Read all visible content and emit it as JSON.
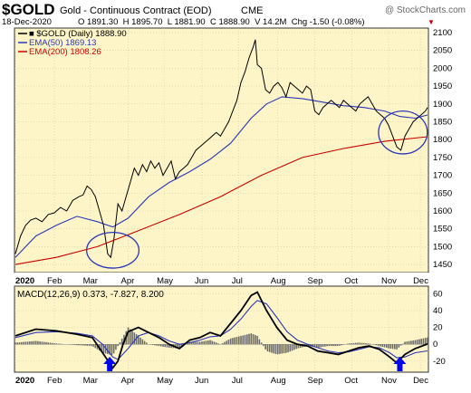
{
  "header": {
    "symbol": "$GOLD",
    "description": "Gold - Continuous Contract (EOD)",
    "exchange": "CME",
    "watermark": "@ StockCharts.com",
    "date": "18-Dec-2020",
    "ohlc": "O 1891.30  H 1895.70  L 1881.90  C 1888.90  V 14.2M  Chg -1.50 (-0.08%)",
    "chg_arrow": "▼"
  },
  "chart_data": [
    {
      "type": "line",
      "panel": "price",
      "legend": [
        {
          "label": "■ $GOLD (Daily) 1888.90",
          "color": "#000000"
        },
        {
          "label": "EMA(50) 1869.13",
          "color": "#2a36b8"
        },
        {
          "label": "EMA(200) 1808.26",
          "color": "#cc0000"
        }
      ],
      "x_months": [
        "2020",
        "Feb",
        "Mar",
        "Apr",
        "May",
        "Jun",
        "Jul",
        "Aug",
        "Sep",
        "Oct",
        "Nov",
        "Dec"
      ],
      "y_ticks": [
        1450,
        1500,
        1550,
        1600,
        1650,
        1700,
        1750,
        1800,
        1850,
        1900,
        1950,
        2000,
        2050,
        2100
      ],
      "ylim": [
        1430,
        2110
      ],
      "series": [
        {
          "role": "price",
          "color": "#000000",
          "values": [
            [
              0,
              1480
            ],
            [
              5,
              1530
            ],
            [
              10,
              1560
            ],
            [
              15,
              1575
            ],
            [
              20,
              1580
            ],
            [
              26,
              1570
            ],
            [
              32,
              1590
            ],
            [
              38,
              1595
            ],
            [
              44,
              1610
            ],
            [
              50,
              1600
            ],
            [
              56,
              1630
            ],
            [
              62,
              1640
            ],
            [
              66,
              1645
            ],
            [
              70,
              1670
            ],
            [
              74,
              1660
            ],
            [
              78,
              1640
            ],
            [
              82,
              1600
            ],
            [
              86,
              1560
            ],
            [
              90,
              1480
            ],
            [
              93,
              1470
            ],
            [
              96,
              1520
            ],
            [
              100,
              1620
            ],
            [
              104,
              1600
            ],
            [
              108,
              1640
            ],
            [
              112,
              1680
            ],
            [
              116,
              1720
            ],
            [
              120,
              1700
            ],
            [
              124,
              1730
            ],
            [
              128,
              1710
            ],
            [
              132,
              1740
            ],
            [
              136,
              1720
            ],
            [
              140,
              1735
            ],
            [
              144,
              1700
            ],
            [
              148,
              1720
            ],
            [
              152,
              1740
            ],
            [
              156,
              1690
            ],
            [
              160,
              1710
            ],
            [
              164,
              1720
            ],
            [
              168,
              1730
            ],
            [
              172,
              1750
            ],
            [
              176,
              1770
            ],
            [
              180,
              1780
            ],
            [
              184,
              1790
            ],
            [
              188,
              1800
            ],
            [
              192,
              1810
            ],
            [
              196,
              1820
            ],
            [
              200,
              1810
            ],
            [
              204,
              1830
            ],
            [
              208,
              1850
            ],
            [
              212,
              1880
            ],
            [
              216,
              1910
            ],
            [
              220,
              1960
            ],
            [
              224,
              1990
            ],
            [
              228,
              2030
            ],
            [
              232,
              2060
            ],
            [
              234,
              2080
            ],
            [
              236,
              2010
            ],
            [
              240,
              2000
            ],
            [
              244,
              1940
            ],
            [
              248,
              1930
            ],
            [
              252,
              1950
            ],
            [
              256,
              1960
            ],
            [
              260,
              1945
            ],
            [
              264,
              1920
            ],
            [
              268,
              1960
            ],
            [
              272,
              1950
            ],
            [
              276,
              1940
            ],
            [
              280,
              1930
            ],
            [
              284,
              1950
            ],
            [
              288,
              1940
            ],
            [
              292,
              1880
            ],
            [
              296,
              1870
            ],
            [
              300,
              1890
            ],
            [
              304,
              1900
            ],
            [
              308,
              1910
            ],
            [
              312,
              1900
            ],
            [
              316,
              1890
            ],
            [
              320,
              1910
            ],
            [
              324,
              1900
            ],
            [
              328,
              1890
            ],
            [
              332,
              1880
            ],
            [
              336,
              1900
            ],
            [
              340,
              1910
            ],
            [
              344,
              1920
            ],
            [
              348,
              1900
            ],
            [
              352,
              1880
            ],
            [
              356,
              1870
            ],
            [
              360,
              1860
            ],
            [
              364,
              1840
            ],
            [
              368,
              1810
            ],
            [
              372,
              1780
            ],
            [
              376,
              1770
            ],
            [
              380,
              1810
            ],
            [
              384,
              1830
            ],
            [
              388,
              1850
            ],
            [
              392,
              1860
            ],
            [
              396,
              1870
            ],
            [
              400,
              1880
            ],
            [
              402,
              1890
            ]
          ]
        },
        {
          "role": "ema50",
          "color": "#2a36b8",
          "values": [
            [
              0,
              1470
            ],
            [
              20,
              1530
            ],
            [
              40,
              1560
            ],
            [
              60,
              1585
            ],
            [
              80,
              1570
            ],
            [
              95,
              1555
            ],
            [
              110,
              1580
            ],
            [
              130,
              1640
            ],
            [
              150,
              1680
            ],
            [
              170,
              1710
            ],
            [
              190,
              1745
            ],
            [
              210,
              1790
            ],
            [
              230,
              1860
            ],
            [
              245,
              1900
            ],
            [
              260,
              1920
            ],
            [
              280,
              1915
            ],
            [
              300,
              1905
            ],
            [
              320,
              1895
            ],
            [
              340,
              1890
            ],
            [
              360,
              1880
            ],
            [
              375,
              1865
            ],
            [
              390,
              1860
            ],
            [
              402,
              1869
            ]
          ]
        },
        {
          "role": "ema200",
          "color": "#cc0000",
          "values": [
            [
              0,
              1450
            ],
            [
              40,
              1470
            ],
            [
              80,
              1500
            ],
            [
              120,
              1545
            ],
            [
              160,
              1590
            ],
            [
              200,
              1640
            ],
            [
              240,
              1700
            ],
            [
              280,
              1750
            ],
            [
              320,
              1775
            ],
            [
              360,
              1795
            ],
            [
              402,
              1808
            ]
          ]
        }
      ],
      "annotations": [
        {
          "type": "ellipse",
          "color": "#2a36b8",
          "x": 95,
          "y": 1490,
          "rx": 15,
          "ry": 50
        },
        {
          "type": "ellipse",
          "color": "#2a36b8",
          "x": 378,
          "y": 1820,
          "rx": 14,
          "ry": 60
        }
      ]
    },
    {
      "type": "line",
      "panel": "macd",
      "legend_label": "MACD(12,26,9) 0.373, -7.827, 8.200",
      "x_months": [
        "2020",
        "Feb",
        "Mar",
        "Apr",
        "May",
        "Jun",
        "Jul",
        "Aug",
        "Sep",
        "Oct",
        "Nov",
        "Dec"
      ],
      "y_ticks": [
        60,
        40,
        20,
        0,
        -20
      ],
      "ylim": [
        -32,
        68
      ],
      "series": [
        {
          "role": "macd",
          "color": "#000000",
          "values": [
            [
              0,
              10
            ],
            [
              20,
              18
            ],
            [
              40,
              16
            ],
            [
              60,
              12
            ],
            [
              75,
              8
            ],
            [
              85,
              -10
            ],
            [
              95,
              -28
            ],
            [
              100,
              -20
            ],
            [
              105,
              0
            ],
            [
              110,
              15
            ],
            [
              120,
              20
            ],
            [
              130,
              14
            ],
            [
              140,
              8
            ],
            [
              150,
              0
            ],
            [
              160,
              -5
            ],
            [
              170,
              5
            ],
            [
              180,
              8
            ],
            [
              190,
              14
            ],
            [
              200,
              10
            ],
            [
              210,
              25
            ],
            [
              220,
              40
            ],
            [
              230,
              58
            ],
            [
              236,
              62
            ],
            [
              245,
              40
            ],
            [
              255,
              20
            ],
            [
              265,
              5
            ],
            [
              275,
              0
            ],
            [
              285,
              -2
            ],
            [
              295,
              -8
            ],
            [
              305,
              -10
            ],
            [
              315,
              -12
            ],
            [
              325,
              -8
            ],
            [
              335,
              -4
            ],
            [
              345,
              -2
            ],
            [
              355,
              -6
            ],
            [
              365,
              -15
            ],
            [
              372,
              -22
            ],
            [
              380,
              -12
            ],
            [
              390,
              -5
            ],
            [
              402,
              0.373
            ]
          ]
        },
        {
          "role": "signal",
          "color": "#2a36b8",
          "values": [
            [
              0,
              8
            ],
            [
              20,
              14
            ],
            [
              40,
              15
            ],
            [
              60,
              13
            ],
            [
              75,
              10
            ],
            [
              85,
              0
            ],
            [
              95,
              -15
            ],
            [
              100,
              -18
            ],
            [
              110,
              -5
            ],
            [
              120,
              10
            ],
            [
              130,
              14
            ],
            [
              140,
              10
            ],
            [
              150,
              4
            ],
            [
              160,
              0
            ],
            [
              170,
              2
            ],
            [
              180,
              5
            ],
            [
              190,
              9
            ],
            [
              200,
              10
            ],
            [
              210,
              18
            ],
            [
              220,
              30
            ],
            [
              230,
              45
            ],
            [
              236,
              52
            ],
            [
              245,
              48
            ],
            [
              255,
              32
            ],
            [
              265,
              15
            ],
            [
              275,
              5
            ],
            [
              285,
              0
            ],
            [
              295,
              -4
            ],
            [
              305,
              -8
            ],
            [
              315,
              -10
            ],
            [
              325,
              -9
            ],
            [
              335,
              -6
            ],
            [
              345,
              -3
            ],
            [
              355,
              -4
            ],
            [
              365,
              -10
            ],
            [
              372,
              -16
            ],
            [
              380,
              -15
            ],
            [
              390,
              -10
            ],
            [
              402,
              -7.827
            ]
          ]
        },
        {
          "role": "histogram",
          "color": "#555555",
          "values": [
            [
              0,
              2
            ],
            [
              20,
              4
            ],
            [
              40,
              1
            ],
            [
              60,
              -1
            ],
            [
              75,
              -2
            ],
            [
              85,
              -10
            ],
            [
              95,
              -13
            ],
            [
              100,
              -2
            ],
            [
              110,
              20
            ],
            [
              120,
              10
            ],
            [
              130,
              0
            ],
            [
              140,
              -2
            ],
            [
              150,
              -4
            ],
            [
              160,
              -5
            ],
            [
              170,
              3
            ],
            [
              180,
              3
            ],
            [
              190,
              5
            ],
            [
              200,
              0
            ],
            [
              210,
              7
            ],
            [
              220,
              10
            ],
            [
              230,
              13
            ],
            [
              236,
              10
            ],
            [
              245,
              -8
            ],
            [
              255,
              -12
            ],
            [
              265,
              -10
            ],
            [
              275,
              -5
            ],
            [
              285,
              -2
            ],
            [
              295,
              -4
            ],
            [
              305,
              -2
            ],
            [
              315,
              -2
            ],
            [
              325,
              1
            ],
            [
              335,
              2
            ],
            [
              345,
              1
            ],
            [
              355,
              -2
            ],
            [
              365,
              -5
            ],
            [
              372,
              -6
            ],
            [
              380,
              3
            ],
            [
              390,
              5
            ],
            [
              402,
              8.2
            ]
          ]
        }
      ],
      "markers": [
        {
          "type": "arrow-up",
          "color": "#0000ee",
          "x": 92
        },
        {
          "type": "arrow-up",
          "color": "#0000ee",
          "x": 375
        }
      ]
    }
  ]
}
